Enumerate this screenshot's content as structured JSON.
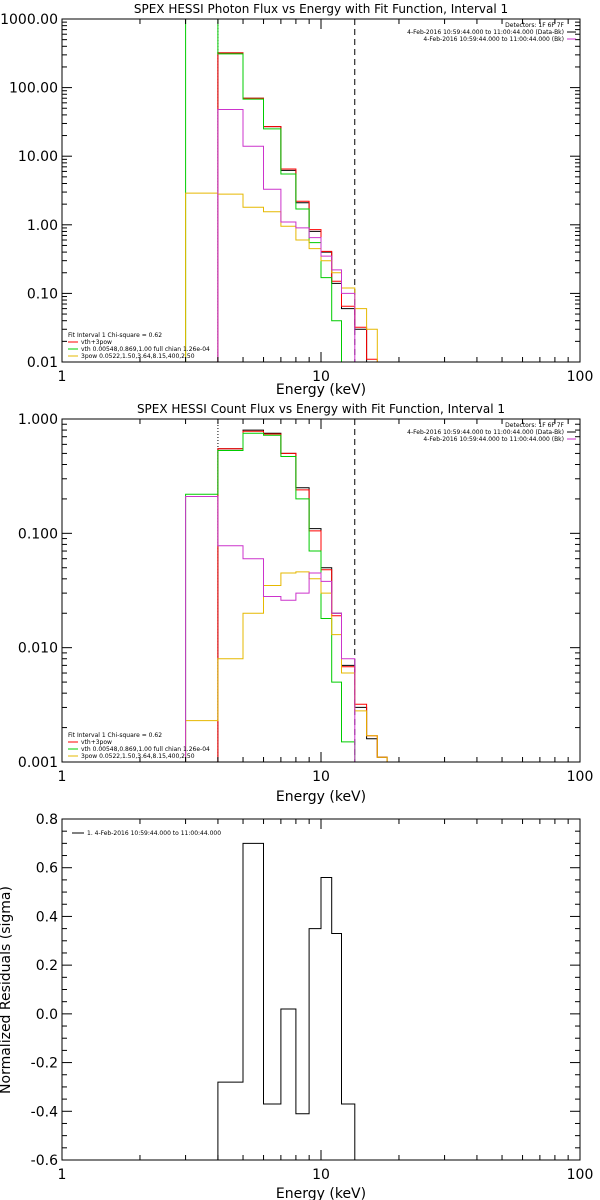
{
  "chart_data": [
    {
      "type": "line",
      "title": "SPEX HESSI Photon Flux vs Energy with Fit Function, Interval 1",
      "xlabel": "Energy (keV)",
      "ylabel": "",
      "xscale": "log",
      "yscale": "log",
      "xlim": [
        1,
        100
      ],
      "ylim": [
        0.01,
        1000
      ],
      "x_ticks": [
        "1",
        "10",
        "100"
      ],
      "y_ticks": [
        "0.01",
        "0.10",
        "1.00",
        "10.00",
        "100.00",
        "1000.00"
      ],
      "dotted_line_x": 4.0,
      "dashed_line_x": 13.5,
      "legend_top_right": [
        {
          "text": "Detectors: 1F 6F 7F",
          "color": "#000000"
        },
        {
          "text": "4-Feb-2016 10:59:44.000 to 11:00:44.000 (Data-Bk)",
          "color": "#000000"
        },
        {
          "text": "4-Feb-2016 10:59:44.000 to 11:00:44.000 (Bk)",
          "color": "#cc33cc"
        }
      ],
      "legend_bottom_left": [
        {
          "text": "Fit Interval 1   Chi-square = 0.62",
          "color": "#000000"
        },
        {
          "text": "vth+3pow",
          "color": "#ff0000"
        },
        {
          "text": "vth 0.00548,0.869,1.00  full chian 1.26e-04",
          "color": "#00cc00"
        },
        {
          "text": "3pow 0.0522,1.50,3.64,8.15,400,2.50",
          "color": "#e6b800"
        }
      ],
      "edges": [
        3,
        4,
        5,
        6,
        7,
        8,
        9,
        10,
        11,
        12,
        13.5,
        15,
        16.5,
        18
      ],
      "series": [
        {
          "name": "Data-Bk",
          "color": "#000000",
          "values": [
            null,
            320,
            70,
            27,
            6.2,
            2.1,
            0.8,
            0.4,
            0.14,
            0.06,
            0.03,
            0.01,
            null
          ]
        },
        {
          "name": "vth+3pow",
          "color": "#ff0000",
          "values": [
            null,
            320,
            70,
            27,
            6.5,
            2.2,
            0.85,
            0.41,
            0.15,
            0.065,
            0.032,
            0.011,
            null
          ]
        },
        {
          "name": "vth",
          "color": "#00cc00",
          "values": [
            1000,
            310,
            68,
            25,
            5.5,
            1.7,
            0.55,
            0.17,
            0.04,
            0.01,
            null,
            null,
            null
          ]
        },
        {
          "name": "3pow",
          "color": "#e6b800",
          "values": [
            2.9,
            2.8,
            1.8,
            1.55,
            0.95,
            0.6,
            0.45,
            0.3,
            0.2,
            0.12,
            0.06,
            0.03,
            0.01
          ]
        },
        {
          "name": "Bk",
          "color": "#cc33cc",
          "values": [
            null,
            48,
            14,
            3.3,
            1.1,
            0.9,
            0.65,
            0.35,
            0.22,
            0.1,
            null,
            null,
            null
          ]
        }
      ]
    },
    {
      "type": "line",
      "title": "SPEX HESSI Count Flux vs Energy with Fit Function, Interval 1",
      "xlabel": "Energy (keV)",
      "ylabel": "",
      "xscale": "log",
      "yscale": "log",
      "xlim": [
        1,
        100
      ],
      "ylim": [
        0.001,
        1.0
      ],
      "x_ticks": [
        "1",
        "10",
        "100"
      ],
      "y_ticks": [
        "0.001",
        "0.010",
        "0.100",
        "1.000"
      ],
      "dotted_line_x": 4.0,
      "dashed_line_x": 13.5,
      "legend_top_right": [
        {
          "text": "Detectors: 1F 6F 7F",
          "color": "#000000"
        },
        {
          "text": "4-Feb-2016 10:59:44.000 to 11:00:44.000 (Data-Bk)",
          "color": "#000000"
        },
        {
          "text": "4-Feb-2016 10:59:44.000 to 11:00:44.000 (Bk)",
          "color": "#cc33cc"
        }
      ],
      "legend_bottom_left": [
        {
          "text": "Fit Interval 1   Chi-square = 0.62",
          "color": "#000000"
        },
        {
          "text": "vth+3pow",
          "color": "#ff0000"
        },
        {
          "text": "vth 0.00548,0.869,1.00  full chian 1.26e-04",
          "color": "#00cc00"
        },
        {
          "text": "3pow 0.0522,1.50,3.64,8.15,400,2.50",
          "color": "#e6b800"
        }
      ],
      "edges": [
        3,
        4,
        5,
        6,
        7,
        8,
        9,
        10,
        11,
        12,
        13.5,
        15,
        16.5,
        18
      ],
      "series": [
        {
          "name": "Data-Bk",
          "color": "#000000",
          "values": [
            null,
            0.55,
            0.8,
            0.75,
            0.5,
            0.25,
            0.11,
            0.05,
            0.02,
            0.007,
            0.003,
            0.0016,
            0.0011
          ]
        },
        {
          "name": "vth+3pow",
          "color": "#ff0000",
          "values": [
            null,
            0.55,
            0.78,
            0.74,
            0.5,
            0.24,
            0.105,
            0.048,
            0.019,
            0.0068,
            0.0032,
            0.0017,
            0.0011
          ]
        },
        {
          "name": "vth",
          "color": "#00cc00",
          "values": [
            0.22,
            0.53,
            0.75,
            0.72,
            0.47,
            0.2,
            0.07,
            0.018,
            0.005,
            0.0015,
            null,
            null,
            null
          ]
        },
        {
          "name": "3pow",
          "color": "#e6b800",
          "values": [
            0.0023,
            0.008,
            0.02,
            0.035,
            0.045,
            0.046,
            0.04,
            0.03,
            0.013,
            0.006,
            0.0028,
            0.0017,
            0.0011
          ]
        },
        {
          "name": "Bk",
          "color": "#cc33cc",
          "values": [
            0.21,
            0.078,
            0.06,
            0.028,
            0.026,
            0.03,
            0.045,
            0.038,
            0.02,
            0.008,
            null,
            null,
            null
          ]
        }
      ]
    },
    {
      "type": "line",
      "title": "",
      "xlabel": "Energy (keV)",
      "ylabel": "Normalized Residuals (sigma)",
      "xscale": "log",
      "yscale": "linear",
      "xlim": [
        1,
        100
      ],
      "ylim": [
        -0.6,
        0.8
      ],
      "x_ticks": [
        "1",
        "10",
        "100"
      ],
      "y_ticks": [
        "-0.6",
        "-0.4",
        "-0.2",
        "0.0",
        "0.2",
        "0.4",
        "0.6",
        "0.8"
      ],
      "legend_top_left": [
        {
          "text": "1.  4-Feb-2016 10:59:44.000 to 11:00:44.000",
          "color": "#000000"
        }
      ],
      "edges": [
        4,
        5,
        6,
        7,
        8,
        9,
        10,
        11,
        12,
        13.5
      ],
      "series": [
        {
          "name": "residuals",
          "color": "#000000",
          "values": [
            -0.28,
            0.7,
            -0.37,
            0.02,
            -0.41,
            0.35,
            0.56,
            0.33,
            -0.37
          ]
        }
      ]
    }
  ]
}
